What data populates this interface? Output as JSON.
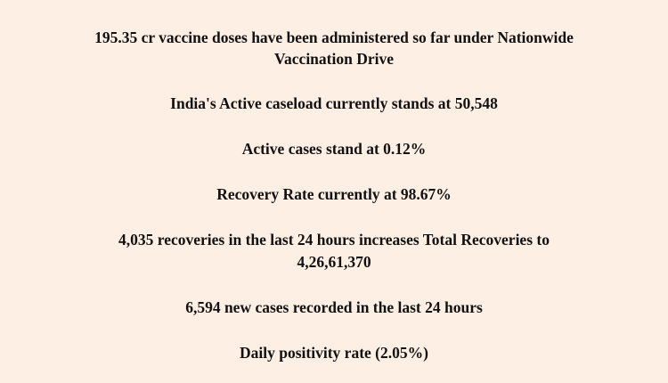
{
  "bulletin": {
    "lines": [
      "195.35 cr vaccine doses have been administered so far under Nationwide",
      "Vaccination Drive",
      "India's Active caseload currently stands at 50,548",
      "Active cases stand at 0.12%",
      "Recovery Rate currently at 98.67%",
      "4,035 recoveries in the last 24 hours increases Total Recoveries to",
      "4,26,61,370",
      "6,594 new cases recorded in the last 24 hours",
      "Daily positivity rate (2.05%)"
    ]
  },
  "colors": {
    "background": "#fdefe4",
    "text": "#111111"
  }
}
